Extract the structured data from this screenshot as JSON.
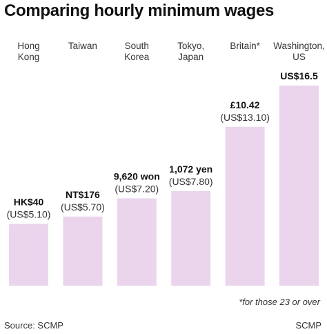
{
  "title": "Comparing hourly minimum wages",
  "footnote": "*for those 23 or over",
  "source": "Source: SCMP",
  "credit": "SCMP",
  "chart_data": {
    "type": "bar",
    "categories": [
      [
        "Hong",
        "Kong"
      ],
      [
        "Taiwan"
      ],
      [
        "South",
        "Korea"
      ],
      [
        "Tokyo,",
        "Japan"
      ],
      [
        "Britain*"
      ],
      [
        "Washington,",
        "US"
      ]
    ],
    "values": [
      5.1,
      5.7,
      7.2,
      7.8,
      13.1,
      16.5
    ],
    "unit": "US$",
    "local_labels": [
      "HK$40",
      "NT$176",
      "9,620 won",
      "1,072 yen",
      "£10.42",
      "US$16.5"
    ],
    "usd_labels": [
      "(US$5.10)",
      "(US$5.70)",
      "(US$7.20)",
      "(US$7.80)",
      "(US$13.10)",
      ""
    ],
    "bar_color": "#ead5ed",
    "ylim": [
      0,
      16.5
    ],
    "grid": false
  }
}
